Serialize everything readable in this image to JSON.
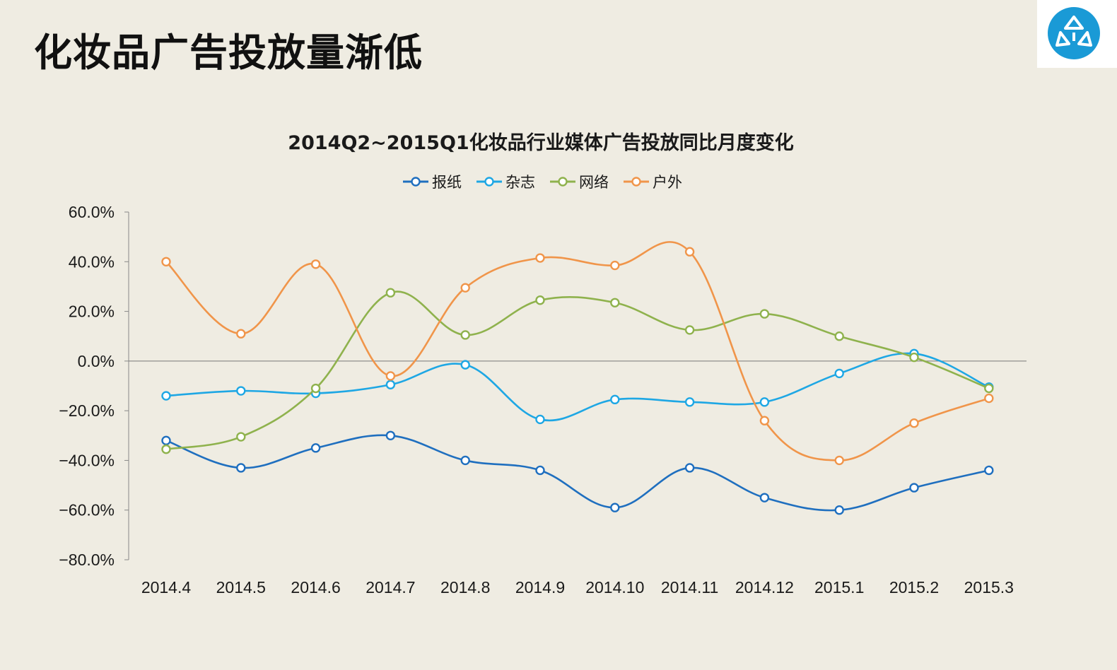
{
  "slide": {
    "title": "化妆品广告投放量渐低"
  },
  "logo": {
    "icon": "brand-logo-icon",
    "color": "#1a9ad6"
  },
  "chart_data": {
    "type": "line",
    "title": "2014Q2~2015Q1化妆品行业媒体广告投放同比月度变化",
    "categories": [
      "2014.4",
      "2014.5",
      "2014.6",
      "2014.7",
      "2014.8",
      "2014.9",
      "2014.10",
      "2014.11",
      "2014.12",
      "2015.1",
      "2015.2",
      "2015.3"
    ],
    "ylim": [
      -80,
      60
    ],
    "yticks": [
      60,
      40,
      20,
      0,
      -20,
      -40,
      -60,
      -80
    ],
    "ytick_labels": [
      "60.0%",
      "40.0%",
      "20.0%",
      "0.0%",
      "−20.0%",
      "−40.0%",
      "−60.0%",
      "−80.0%"
    ],
    "legend_position": "top-center",
    "grid": false,
    "smooth": true,
    "series": [
      {
        "name": "报纸",
        "color": "#1f6fbf",
        "values": [
          -32,
          -43,
          -35,
          -30,
          -40,
          -44,
          -59,
          -43,
          -55,
          -60,
          -51,
          -44
        ]
      },
      {
        "name": "杂志",
        "color": "#1ea7e4",
        "values": [
          -14,
          -12,
          -13,
          -9.5,
          -1.5,
          -23.5,
          -15.5,
          -16.5,
          -16.5,
          -5,
          3,
          -10.5
        ]
      },
      {
        "name": "网络",
        "color": "#8fb24d",
        "values": [
          -35.5,
          -30.5,
          -11,
          27.5,
          10.5,
          24.5,
          23.5,
          12.5,
          19,
          10,
          1.5,
          -11
        ]
      },
      {
        "name": "户外",
        "color": "#f0954a",
        "values": [
          40,
          11,
          39,
          -6,
          29.5,
          41.5,
          38.5,
          44,
          -24,
          -40,
          -25,
          -15
        ]
      }
    ]
  }
}
